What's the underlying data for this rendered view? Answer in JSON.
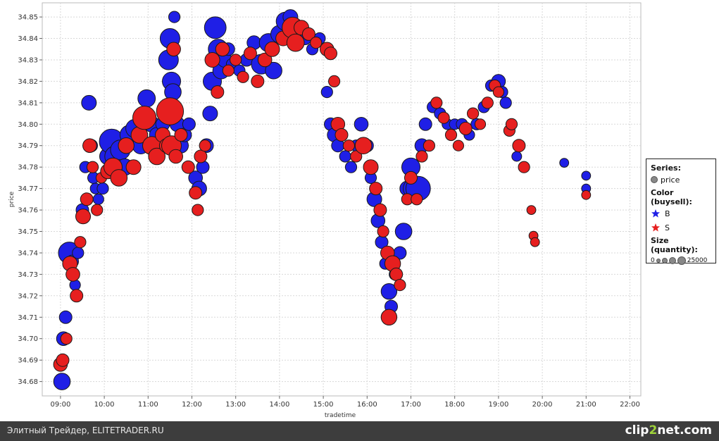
{
  "chart_data": {
    "type": "scatter",
    "xlabel": "tradetime",
    "ylabel": "price",
    "x_ticks": [
      "09:00",
      "10:00",
      "11:00",
      "12:00",
      "13:00",
      "14:00",
      "15:00",
      "16:00",
      "17:00",
      "18:00",
      "19:00",
      "20:00",
      "21:00",
      "22:00"
    ],
    "y_ticks": [
      "34.68",
      "34.69",
      "34.70",
      "34.71",
      "34.72",
      "34.73",
      "34.74",
      "34.75",
      "34.76",
      "34.77",
      "34.78",
      "34.79",
      "34.80",
      "34.81",
      "34.82",
      "34.83",
      "34.84",
      "34.85"
    ],
    "xlim": [
      "08:35",
      "22:15"
    ],
    "ylim": [
      34.6733,
      34.8566
    ],
    "grid": true,
    "legend_placement": "right",
    "colors": {
      "B": "#1f1fe6",
      "S": "#e61f1f",
      "edge": "#1a1a1a",
      "size_swatch": "#888888"
    },
    "size_max": 25000,
    "buy_points": [
      [
        "09:02",
        34.68,
        8000
      ],
      [
        "09:04",
        34.7,
        5000
      ],
      [
        "09:07",
        34.71,
        4000
      ],
      [
        "09:12",
        34.74,
        15000
      ],
      [
        "09:16",
        34.736,
        4000
      ],
      [
        "09:20",
        34.725,
        2500
      ],
      [
        "09:24",
        34.74,
        3000
      ],
      [
        "09:30",
        34.76,
        4000
      ],
      [
        "09:34",
        34.78,
        3000
      ],
      [
        "09:39",
        34.81,
        6000
      ],
      [
        "09:42",
        34.79,
        4000
      ],
      [
        "09:45",
        34.775,
        3000
      ],
      [
        "09:48",
        34.77,
        2500
      ],
      [
        "09:52",
        34.765,
        2500
      ],
      [
        "09:58",
        34.77,
        3000
      ],
      [
        "10:05",
        34.785,
        8000
      ],
      [
        "10:10",
        34.792,
        20000
      ],
      [
        "10:15",
        34.785,
        14000
      ],
      [
        "10:22",
        34.788,
        12000
      ],
      [
        "10:28",
        34.78,
        8000
      ],
      [
        "10:35",
        34.795,
        12000
      ],
      [
        "10:42",
        34.798,
        10000
      ],
      [
        "10:50",
        34.79,
        8000
      ],
      [
        "10:58",
        34.812,
        9000
      ],
      [
        "11:05",
        34.8,
        7000
      ],
      [
        "11:12",
        34.795,
        6000
      ],
      [
        "11:20",
        34.8,
        5000
      ],
      [
        "11:28",
        34.83,
        12000
      ],
      [
        "11:30",
        34.84,
        12000
      ],
      [
        "11:32",
        34.82,
        10000
      ],
      [
        "11:34",
        34.815,
        8000
      ],
      [
        "11:36",
        34.85,
        3000
      ],
      [
        "11:40",
        34.8,
        6000
      ],
      [
        "11:45",
        34.79,
        6000
      ],
      [
        "11:50",
        34.795,
        5000
      ],
      [
        "11:56",
        34.8,
        4000
      ],
      [
        "12:05",
        34.775,
        5000
      ],
      [
        "12:10",
        34.77,
        6000
      ],
      [
        "12:15",
        34.78,
        4000
      ],
      [
        "12:20",
        34.79,
        5000
      ],
      [
        "12:25",
        34.805,
        6000
      ],
      [
        "12:28",
        34.82,
        10000
      ],
      [
        "12:32",
        34.845,
        15000
      ],
      [
        "12:36",
        34.835,
        12000
      ],
      [
        "12:40",
        34.825,
        8000
      ],
      [
        "12:45",
        34.83,
        6000
      ],
      [
        "12:50",
        34.835,
        4000
      ],
      [
        "12:55",
        34.828,
        3000
      ],
      [
        "13:05",
        34.825,
        3000
      ],
      [
        "13:15",
        34.83,
        4000
      ],
      [
        "13:25",
        34.838,
        5000
      ],
      [
        "13:35",
        34.828,
        12000
      ],
      [
        "13:45",
        34.838,
        10000
      ],
      [
        "13:52",
        34.825,
        8000
      ],
      [
        "14:00",
        34.842,
        9000
      ],
      [
        "14:08",
        34.848,
        10000
      ],
      [
        "14:15",
        34.85,
        6000
      ],
      [
        "14:25",
        34.842,
        5000
      ],
      [
        "14:35",
        34.84,
        4000
      ],
      [
        "14:45",
        34.835,
        3000
      ],
      [
        "14:55",
        34.84,
        3000
      ],
      [
        "15:05",
        34.815,
        3000
      ],
      [
        "15:10",
        34.8,
        4000
      ],
      [
        "15:15",
        34.795,
        5000
      ],
      [
        "15:20",
        34.79,
        4000
      ],
      [
        "15:30",
        34.785,
        3000
      ],
      [
        "15:38",
        34.78,
        3000
      ],
      [
        "15:45",
        34.79,
        3000
      ],
      [
        "15:52",
        34.8,
        5000
      ],
      [
        "16:00",
        34.79,
        4000
      ],
      [
        "16:05",
        34.775,
        3000
      ],
      [
        "16:10",
        34.765,
        6000
      ],
      [
        "16:15",
        34.755,
        5000
      ],
      [
        "16:20",
        34.745,
        4000
      ],
      [
        "16:25",
        34.735,
        3000
      ],
      [
        "16:30",
        34.722,
        7000
      ],
      [
        "16:33",
        34.715,
        4000
      ],
      [
        "16:38",
        34.73,
        3000
      ],
      [
        "16:45",
        34.74,
        4000
      ],
      [
        "16:50",
        34.75,
        8000
      ],
      [
        "16:55",
        34.77,
        6000
      ],
      [
        "17:00",
        34.78,
        10000
      ],
      [
        "17:03",
        34.77,
        12000
      ],
      [
        "17:10",
        34.77,
        20000
      ],
      [
        "17:15",
        34.79,
        5000
      ],
      [
        "17:20",
        34.8,
        4000
      ],
      [
        "17:30",
        34.808,
        3000
      ],
      [
        "17:40",
        34.805,
        3000
      ],
      [
        "17:50",
        34.8,
        2500
      ],
      [
        "18:00",
        34.8,
        2500
      ],
      [
        "18:10",
        34.8,
        3000
      ],
      [
        "18:20",
        34.795,
        2500
      ],
      [
        "18:30",
        34.8,
        3000
      ],
      [
        "18:40",
        34.808,
        3000
      ],
      [
        "18:50",
        34.818,
        3000
      ],
      [
        "19:00",
        34.82,
        5000
      ],
      [
        "19:05",
        34.815,
        3000
      ],
      [
        "19:10",
        34.81,
        3000
      ],
      [
        "19:25",
        34.785,
        2000
      ],
      [
        "20:30",
        34.782,
        1500
      ],
      [
        "21:00",
        34.776,
        1500
      ],
      [
        "21:00",
        34.77,
        1500
      ]
    ],
    "sell_points": [
      [
        "09:00",
        34.688,
        5000
      ],
      [
        "09:03",
        34.69,
        4000
      ],
      [
        "09:08",
        34.7,
        3000
      ],
      [
        "09:13",
        34.735,
        6000
      ],
      [
        "09:17",
        34.73,
        5000
      ],
      [
        "09:22",
        34.72,
        4000
      ],
      [
        "09:27",
        34.745,
        3000
      ],
      [
        "09:31",
        34.757,
        6000
      ],
      [
        "09:36",
        34.765,
        4000
      ],
      [
        "09:40",
        34.79,
        5000
      ],
      [
        "09:44",
        34.78,
        3000
      ],
      [
        "09:50",
        34.76,
        3000
      ],
      [
        "09:56",
        34.775,
        2500
      ],
      [
        "10:05",
        34.778,
        6000
      ],
      [
        "10:12",
        34.78,
        10000
      ],
      [
        "10:20",
        34.775,
        8000
      ],
      [
        "10:30",
        34.79,
        7000
      ],
      [
        "10:40",
        34.78,
        6000
      ],
      [
        "10:48",
        34.795,
        8000
      ],
      [
        "10:55",
        34.803,
        18000
      ],
      [
        "11:05",
        34.79,
        10000
      ],
      [
        "11:12",
        34.785,
        8000
      ],
      [
        "11:20",
        34.795,
        6000
      ],
      [
        "11:25",
        34.79,
        5000
      ],
      [
        "11:30",
        34.806,
        25000
      ],
      [
        "11:32",
        34.79,
        12000
      ],
      [
        "11:35",
        34.835,
        5000
      ],
      [
        "11:38",
        34.785,
        5000
      ],
      [
        "11:45",
        34.795,
        4000
      ],
      [
        "11:55",
        34.78,
        4000
      ],
      [
        "12:05",
        34.768,
        4000
      ],
      [
        "12:08",
        34.76,
        3000
      ],
      [
        "12:12",
        34.785,
        4000
      ],
      [
        "12:18",
        34.79,
        3000
      ],
      [
        "12:28",
        34.83,
        6000
      ],
      [
        "12:35",
        34.815,
        4000
      ],
      [
        "12:42",
        34.835,
        5000
      ],
      [
        "12:50",
        34.825,
        3000
      ],
      [
        "13:00",
        34.83,
        3000
      ],
      [
        "13:10",
        34.822,
        3000
      ],
      [
        "13:20",
        34.833,
        4000
      ],
      [
        "13:30",
        34.82,
        4000
      ],
      [
        "13:40",
        34.83,
        5000
      ],
      [
        "13:50",
        34.835,
        6000
      ],
      [
        "14:05",
        34.84,
        6000
      ],
      [
        "14:18",
        34.845,
        14000
      ],
      [
        "14:22",
        34.838,
        9000
      ],
      [
        "14:30",
        34.845,
        6000
      ],
      [
        "14:40",
        34.842,
        4000
      ],
      [
        "14:50",
        34.838,
        3000
      ],
      [
        "15:05",
        34.835,
        5000
      ],
      [
        "15:10",
        34.833,
        4000
      ],
      [
        "15:15",
        34.82,
        3000
      ],
      [
        "15:20",
        34.8,
        5000
      ],
      [
        "15:25",
        34.795,
        4000
      ],
      [
        "15:35",
        34.79,
        3000
      ],
      [
        "15:45",
        34.785,
        3000
      ],
      [
        "15:55",
        34.79,
        8000
      ],
      [
        "16:05",
        34.78,
        6000
      ],
      [
        "16:12",
        34.77,
        4000
      ],
      [
        "16:18",
        34.76,
        4000
      ],
      [
        "16:22",
        34.75,
        3000
      ],
      [
        "16:28",
        34.74,
        5000
      ],
      [
        "16:30",
        34.71,
        7000
      ],
      [
        "16:35",
        34.735,
        7000
      ],
      [
        "16:40",
        34.73,
        4000
      ],
      [
        "16:45",
        34.725,
        3000
      ],
      [
        "16:55",
        34.765,
        3000
      ],
      [
        "17:00",
        34.775,
        4000
      ],
      [
        "17:08",
        34.765,
        3000
      ],
      [
        "17:15",
        34.785,
        3000
      ],
      [
        "17:25",
        34.79,
        3000
      ],
      [
        "17:35",
        34.81,
        3000
      ],
      [
        "17:45",
        34.803,
        3000
      ],
      [
        "17:55",
        34.795,
        3000
      ],
      [
        "18:05",
        34.79,
        2500
      ],
      [
        "18:15",
        34.798,
        4000
      ],
      [
        "18:25",
        34.805,
        3000
      ],
      [
        "18:35",
        34.8,
        2500
      ],
      [
        "18:45",
        34.81,
        3000
      ],
      [
        "18:55",
        34.818,
        3000
      ],
      [
        "19:00",
        34.815,
        2500
      ],
      [
        "19:15",
        34.797,
        3000
      ],
      [
        "19:18",
        34.8,
        3000
      ],
      [
        "19:28",
        34.79,
        4000
      ],
      [
        "19:35",
        34.78,
        3000
      ],
      [
        "19:45",
        34.76,
        1500
      ],
      [
        "19:48",
        34.748,
        1500
      ],
      [
        "19:50",
        34.745,
        1500
      ],
      [
        "21:00",
        34.767,
        1500
      ]
    ]
  },
  "legend": {
    "series_title": "Series:",
    "series_item": "price",
    "color_title": "Color (buysell):",
    "color_items": [
      {
        "label": "B",
        "color": "#1f1fe6"
      },
      {
        "label": "S",
        "color": "#e61f1f"
      }
    ],
    "size_title": "Size (quantity):",
    "size_min_label": "0",
    "size_max_label": "25000"
  },
  "footer": {
    "left_text": "Элитный Трейдер, ELITETRADER.RU",
    "brand_prefix": "clip",
    "brand_two": "2",
    "brand_suffix": "net.com"
  }
}
